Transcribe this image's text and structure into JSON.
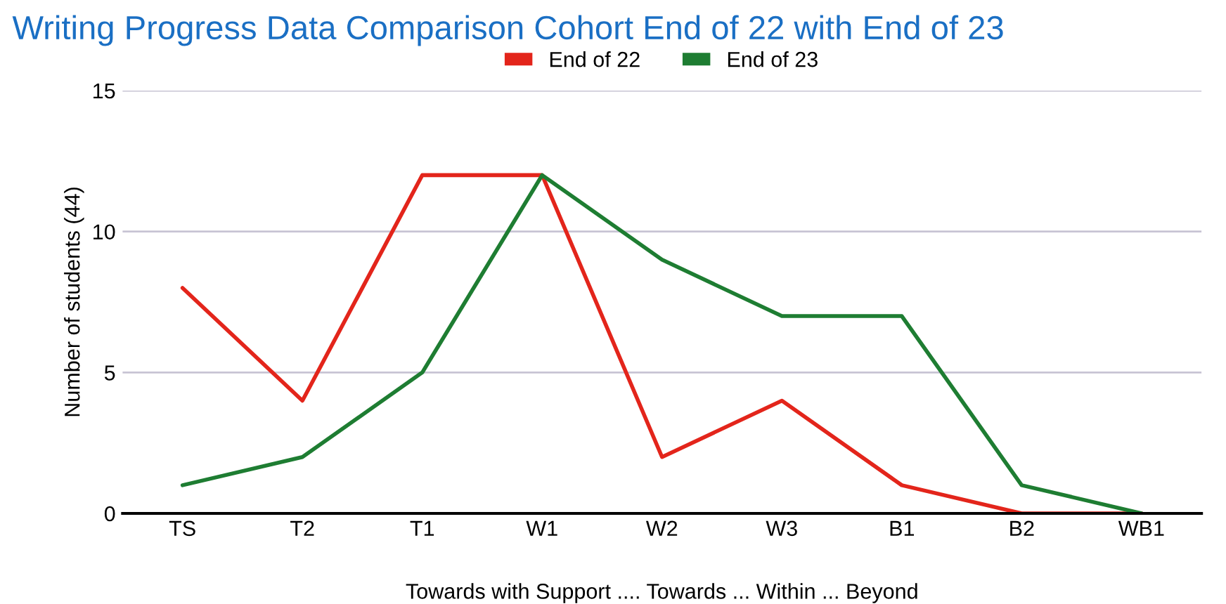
{
  "chart_data": {
    "type": "line",
    "title": "Writing Progress Data Comparison Cohort End of 22 with End of 23",
    "xlabel": "Towards with Support .... Towards ... Within ... Beyond",
    "ylabel": "Number of students (44)",
    "categories": [
      "TS",
      "T2",
      "T1",
      "W1",
      "W2",
      "W3",
      "B1",
      "B2",
      "WB1"
    ],
    "series": [
      {
        "name": "End of 22",
        "color": "#e3251b",
        "values": [
          8,
          4,
          12,
          12,
          2,
          4,
          1,
          0,
          0
        ]
      },
      {
        "name": "End of 23",
        "color": "#1e7d32",
        "values": [
          1,
          2,
          5,
          12,
          9,
          7,
          7,
          1,
          0
        ]
      }
    ],
    "ylim": [
      0,
      15
    ],
    "yticks": [
      0,
      5,
      10,
      15
    ],
    "grid": "y",
    "legend": "top",
    "marker": "none",
    "line_style": "solid"
  }
}
